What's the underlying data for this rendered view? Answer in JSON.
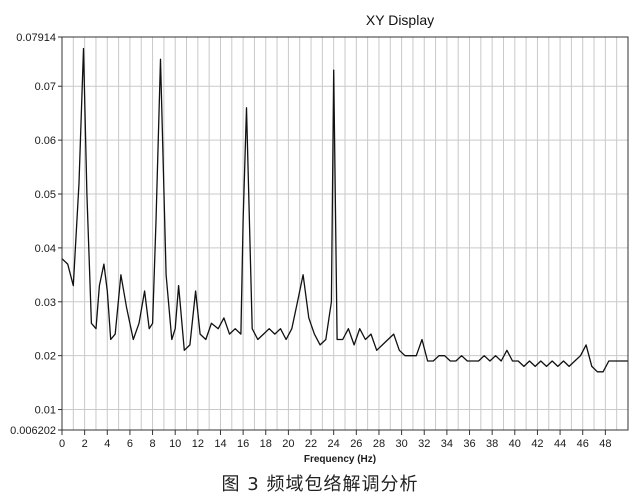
{
  "chart_data": {
    "type": "line",
    "title": "XY Display",
    "xlabel": "Frequency (Hz)",
    "ylabel": "",
    "xlim": [
      0,
      50
    ],
    "ylim": [
      0.006202,
      0.07914
    ],
    "grid": true,
    "legend": "none",
    "line_color": "#111111",
    "x_ticks": [
      "0",
      "2",
      "4",
      "6",
      "8",
      "10",
      "12",
      "14",
      "16",
      "18",
      "20",
      "22",
      "24",
      "26",
      "28",
      "30",
      "32",
      "34",
      "36",
      "38",
      "40",
      "42",
      "44",
      "46",
      "48"
    ],
    "x_tick_values": [
      0,
      2,
      4,
      6,
      8,
      10,
      12,
      14,
      16,
      18,
      20,
      22,
      24,
      26,
      28,
      30,
      32,
      34,
      36,
      38,
      40,
      42,
      44,
      46,
      48
    ],
    "y_ticks": [
      "0.006202",
      "0.01",
      "0.02",
      "0.03",
      "0.04",
      "0.05",
      "0.06",
      "0.07",
      "0.07914"
    ],
    "y_tick_values": [
      0.006202,
      0.01,
      0.02,
      0.03,
      0.04,
      0.05,
      0.06,
      0.07,
      0.07914
    ],
    "series": [
      {
        "x": [
          0.0,
          0.5,
          1.0,
          1.5,
          1.9,
          2.2,
          2.6,
          3.0,
          3.3,
          3.7,
          4.0,
          4.3,
          4.7,
          5.2,
          5.7,
          6.3,
          6.8,
          7.3,
          7.7,
          8.0,
          8.3,
          8.7,
          9.2,
          9.7,
          10.0,
          10.3,
          10.8,
          11.3,
          11.8,
          12.2,
          12.7,
          13.2,
          13.8,
          14.3,
          14.8,
          15.3,
          15.8,
          16.0,
          16.3,
          16.8,
          17.3,
          17.8,
          18.3,
          18.8,
          19.3,
          19.8,
          20.3,
          20.8,
          21.3,
          21.8,
          22.3,
          22.8,
          23.3,
          23.8,
          24.0,
          24.3,
          24.8,
          25.3,
          25.8,
          26.3,
          26.8,
          27.3,
          27.8,
          28.3,
          28.8,
          29.3,
          29.8,
          30.3,
          30.8,
          31.3,
          31.8,
          32.3,
          32.8,
          33.3,
          33.8,
          34.3,
          34.8,
          35.3,
          35.8,
          36.3,
          36.8,
          37.3,
          37.8,
          38.3,
          38.8,
          39.3,
          39.8,
          40.3,
          40.8,
          41.3,
          41.8,
          42.3,
          42.8,
          43.3,
          43.8,
          44.3,
          44.8,
          45.3,
          45.8,
          46.3,
          46.8,
          47.3,
          47.8,
          48.3,
          48.8,
          49.3,
          49.8,
          50.0
        ],
        "y": [
          0.038,
          0.037,
          0.033,
          0.052,
          0.077,
          0.05,
          0.026,
          0.025,
          0.033,
          0.037,
          0.032,
          0.023,
          0.024,
          0.035,
          0.029,
          0.023,
          0.026,
          0.032,
          0.025,
          0.026,
          0.045,
          0.075,
          0.035,
          0.023,
          0.025,
          0.033,
          0.021,
          0.022,
          0.032,
          0.024,
          0.023,
          0.026,
          0.025,
          0.027,
          0.024,
          0.025,
          0.024,
          0.045,
          0.066,
          0.025,
          0.023,
          0.024,
          0.025,
          0.024,
          0.025,
          0.023,
          0.025,
          0.03,
          0.035,
          0.027,
          0.024,
          0.022,
          0.023,
          0.03,
          0.073,
          0.023,
          0.023,
          0.025,
          0.022,
          0.025,
          0.023,
          0.024,
          0.021,
          0.022,
          0.023,
          0.024,
          0.021,
          0.02,
          0.02,
          0.02,
          0.023,
          0.019,
          0.019,
          0.02,
          0.02,
          0.019,
          0.019,
          0.02,
          0.019,
          0.019,
          0.019,
          0.02,
          0.019,
          0.02,
          0.019,
          0.021,
          0.019,
          0.019,
          0.018,
          0.019,
          0.018,
          0.019,
          0.018,
          0.019,
          0.018,
          0.019,
          0.018,
          0.019,
          0.02,
          0.022,
          0.018,
          0.017,
          0.017,
          0.019,
          0.019,
          0.019,
          0.019,
          0.019
        ]
      }
    ]
  },
  "caption": "图 3   频域包络解调分析"
}
